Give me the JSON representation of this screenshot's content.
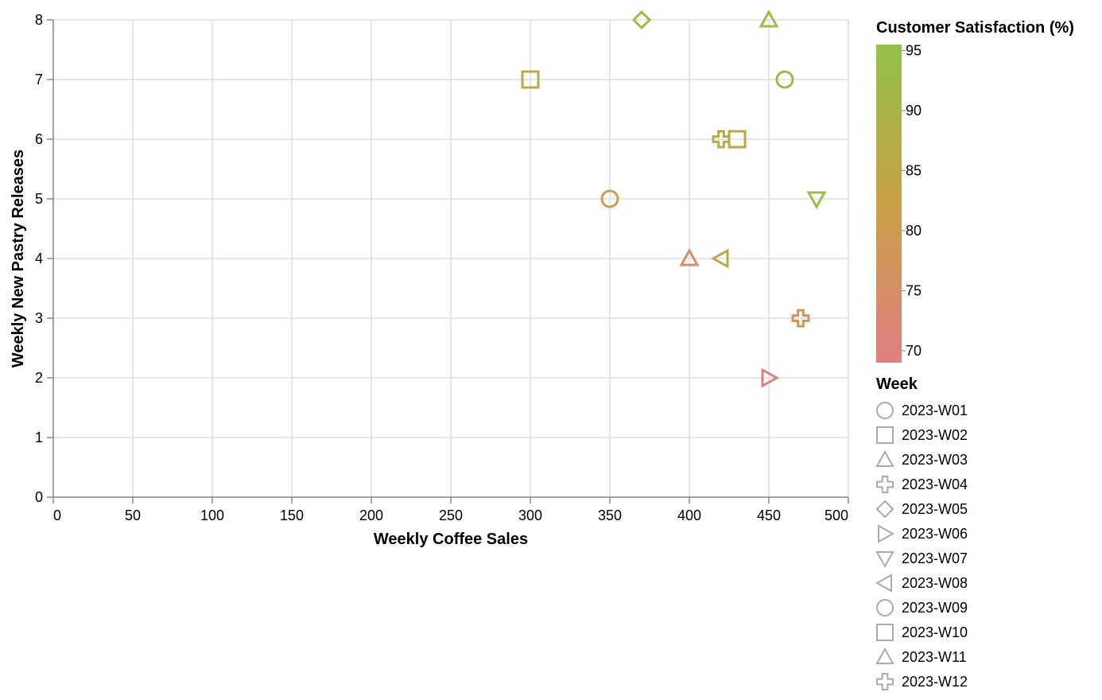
{
  "chart_data": {
    "type": "scatter",
    "title": "",
    "xlabel": "Weekly Coffee Sales",
    "ylabel": "Weekly New Pastry Releases",
    "xlim": [
      0,
      500
    ],
    "ylim": [
      0,
      8
    ],
    "x_ticks": [
      "0",
      "50",
      "100",
      "150",
      "200",
      "250",
      "300",
      "350",
      "400",
      "450",
      "500"
    ],
    "y_ticks": [
      "0",
      "1",
      "2",
      "3",
      "4",
      "5",
      "6",
      "7",
      "8"
    ],
    "grid": true,
    "color_legend": {
      "title": "Customer Satisfaction (%)",
      "ticks": [
        "95",
        "90",
        "85",
        "80",
        "75",
        "70"
      ],
      "domain": [
        69,
        95.5
      ],
      "colors": [
        "#e07f80",
        "#c8a048",
        "#93c04a"
      ]
    },
    "shape_legend": {
      "title": "Week",
      "entries": [
        {
          "label": "2023-W01",
          "shape": "circle-icon"
        },
        {
          "label": "2023-W02",
          "shape": "square-icon"
        },
        {
          "label": "2023-W03",
          "shape": "triangle-up-icon"
        },
        {
          "label": "2023-W04",
          "shape": "cross-icon"
        },
        {
          "label": "2023-W05",
          "shape": "diamond-icon"
        },
        {
          "label": "2023-W06",
          "shape": "triangle-right-icon"
        },
        {
          "label": "2023-W07",
          "shape": "triangle-down-icon"
        },
        {
          "label": "2023-W08",
          "shape": "triangle-left-icon"
        },
        {
          "label": "2023-W09",
          "shape": "circle-icon"
        },
        {
          "label": "2023-W10",
          "shape": "square-icon"
        },
        {
          "label": "2023-W11",
          "shape": "triangle-up-icon"
        },
        {
          "label": "2023-W12",
          "shape": "cross-icon"
        }
      ]
    },
    "points": [
      {
        "week": "2023-W01",
        "x": 350,
        "y": 5,
        "satisfaction": 80
      },
      {
        "week": "2023-W02",
        "x": 300,
        "y": 7,
        "satisfaction": 85
      },
      {
        "week": "2023-W03",
        "x": 400,
        "y": 4,
        "satisfaction": 75
      },
      {
        "week": "2023-W04",
        "x": 420,
        "y": 6,
        "satisfaction": 88
      },
      {
        "week": "2023-W05",
        "x": 370,
        "y": 8,
        "satisfaction": 90
      },
      {
        "week": "2023-W06",
        "x": 450,
        "y": 2,
        "satisfaction": 70
      },
      {
        "week": "2023-W07",
        "x": 480,
        "y": 5,
        "satisfaction": 95
      },
      {
        "week": "2023-W08",
        "x": 420,
        "y": 4,
        "satisfaction": 87
      },
      {
        "week": "2023-W09",
        "x": 460,
        "y": 7,
        "satisfaction": 90
      },
      {
        "week": "2023-W10",
        "x": 430,
        "y": 6,
        "satisfaction": 85
      },
      {
        "week": "2023-W11",
        "x": 450,
        "y": 8,
        "satisfaction": 93
      },
      {
        "week": "2023-W12",
        "x": 470,
        "y": 3,
        "satisfaction": 78
      }
    ]
  }
}
